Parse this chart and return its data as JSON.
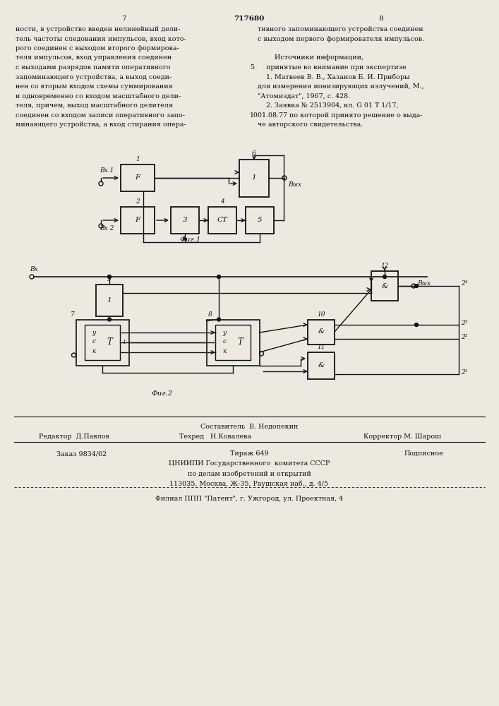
{
  "page_number_center": "717680",
  "page_number_left": "7",
  "page_number_right": "8",
  "bg_color": "#ece9e0",
  "text_color": "#111111",
  "left_column_text": [
    "ности, в устройство введен нелинейный дели-",
    "тель частоты следования импульсов, вход кото-",
    "рого соединен с выходом второго формирова-",
    "теля импульсов, вход управления соединен",
    "с выходами разрядов памяти оперативного",
    "запоминающего устройства, а выход соеди-",
    "нен со вторым входом схемы суммирования",
    "и одновременно со входом масштабного дели-",
    "теля, причем, выход масштабного делителя",
    "соединен со входом записи оперативного запо-",
    "минающего устройства, а вход стирания опера-"
  ],
  "right_column_text": [
    "тивного запоминающего устройства соединен",
    "с выходом первого формирователя импульсов.",
    "",
    "        Источники информации,",
    "    принятые во внимание при экспертизе",
    "    1. Матвеев В. В., Хазанов Б. И. Приборы",
    "для измерения ионизирующих излучений, М.,",
    "\"Атомиздат\", 1967, с. 428.",
    "    2. Заявка № 2513904, кл. G 01 T 1/17,",
    "01.08.77 по которой принято решение о выда-",
    "че авторского свидетельства."
  ],
  "line_number_5": "5",
  "line_number_10": "10",
  "fig1_caption": "Фиг.1",
  "fig2_caption": "Фиг.2",
  "footer_line1": "Составитель  В. Недопекин",
  "footer_editor": "Редактор  Д.Павлов",
  "footer_tech": "Техред   Н.Ковалева",
  "footer_corrector": "Корректор М. Шарош",
  "footer_order": "Заказ 9834/62",
  "footer_circulation": "Тираж 649",
  "footer_subscription": "Подписное",
  "footer_institute": "ЦНИИПИ Государственного  комитета СССР",
  "footer_institute2": "по делам изобретений и открытий",
  "footer_address": "113035, Москва, Ж-35, Раушская наб., д. 4/5",
  "footer_branch": "Филиал ППП \"Патент\", г. Ужгород, ул. Проектная, 4"
}
